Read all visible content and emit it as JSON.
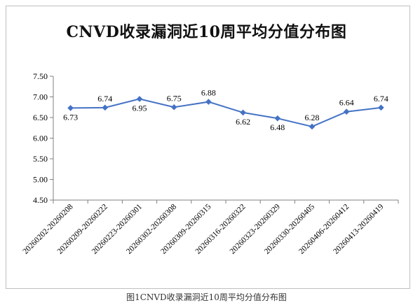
{
  "chart_data": {
    "type": "line",
    "title": "CNVD收录漏洞近10周平均分值分布图",
    "caption": "图1CNVD收录漏洞近10周平均分值分布图",
    "xlabel": "",
    "ylabel": "",
    "ylim": [
      4.5,
      7.5
    ],
    "yticks": [
      "4.50",
      "5.00",
      "5.50",
      "6.00",
      "6.50",
      "7.00",
      "7.50"
    ],
    "grid": false,
    "legend": "none",
    "line_color": "#4472c4",
    "categories": [
      "20260202-20260208",
      "20260209-20260222",
      "20260223-20260301",
      "20260302-20260308",
      "20260309-20260315",
      "20260316-20260322",
      "20260323-20260329",
      "20260330-20260405",
      "20260406-20260412",
      "20260413-20260419"
    ],
    "series": [
      {
        "values": [
          6.73,
          6.74,
          6.95,
          6.75,
          6.88,
          6.62,
          6.48,
          6.28,
          6.64,
          6.74
        ],
        "labels": [
          "6.73",
          "6.74",
          "6.95",
          "6.75",
          "6.88",
          "6.62",
          "6.48",
          "6.28",
          "6.64",
          "6.74"
        ]
      }
    ]
  }
}
